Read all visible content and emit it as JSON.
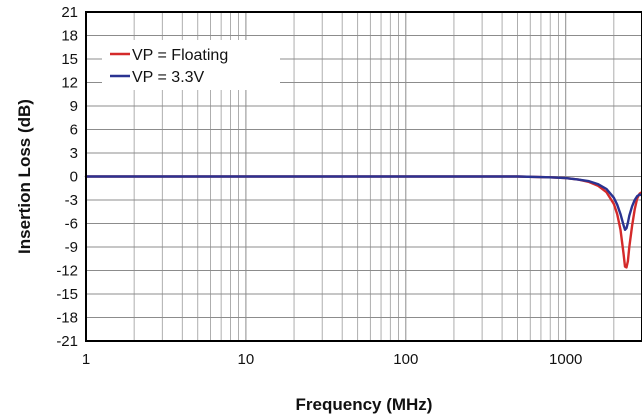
{
  "chart_data": {
    "type": "line",
    "title": "",
    "xlabel": "Frequency (MHz)",
    "ylabel": "Insertion Loss (dB)",
    "x_scale": "log",
    "xlim": [
      1,
      3000
    ],
    "ylim": [
      -21,
      21
    ],
    "x_ticks": [
      1,
      10,
      100,
      1000
    ],
    "x_tick_labels": [
      "1",
      "10",
      "100",
      "1000"
    ],
    "y_ticks": [
      21,
      18,
      15,
      12,
      9,
      6,
      3,
      0,
      -3,
      -6,
      -9,
      -12,
      -15,
      -18,
      -21
    ],
    "y_tick_labels": [
      "21",
      "18",
      "15",
      "12",
      "9",
      "6",
      "3",
      "0",
      "-3",
      "-6",
      "-9",
      "-12",
      "-15",
      "-18",
      "-21"
    ],
    "grid": true,
    "legend_position": "top-left",
    "series": [
      {
        "name": "VP = Floating",
        "color": "#d42a2a",
        "x": [
          1,
          10,
          100,
          500,
          800,
          1000,
          1200,
          1400,
          1600,
          1800,
          2000,
          2100,
          2200,
          2300,
          2350,
          2400,
          2450,
          2500,
          2600,
          2700,
          2800,
          2900,
          3000
        ],
        "y": [
          0,
          0,
          0,
          0,
          -0.1,
          -0.2,
          -0.4,
          -0.7,
          -1.2,
          -2.0,
          -3.5,
          -4.8,
          -6.8,
          -9.8,
          -11.5,
          -11.6,
          -10.8,
          -9.0,
          -6.3,
          -4.2,
          -2.8,
          -2.2,
          -2.0
        ]
      },
      {
        "name": "VP = 3.3V",
        "color": "#2a3391",
        "x": [
          1,
          10,
          100,
          500,
          800,
          1000,
          1200,
          1400,
          1600,
          1800,
          2000,
          2100,
          2200,
          2300,
          2350,
          2400,
          2450,
          2500,
          2600,
          2700,
          2800,
          2900,
          3000
        ],
        "y": [
          0,
          0,
          0,
          0,
          -0.1,
          -0.2,
          -0.4,
          -0.6,
          -1.0,
          -1.6,
          -2.7,
          -3.6,
          -4.8,
          -6.2,
          -6.8,
          -6.6,
          -5.9,
          -5.0,
          -3.8,
          -3.0,
          -2.5,
          -2.3,
          -2.4
        ]
      }
    ]
  }
}
